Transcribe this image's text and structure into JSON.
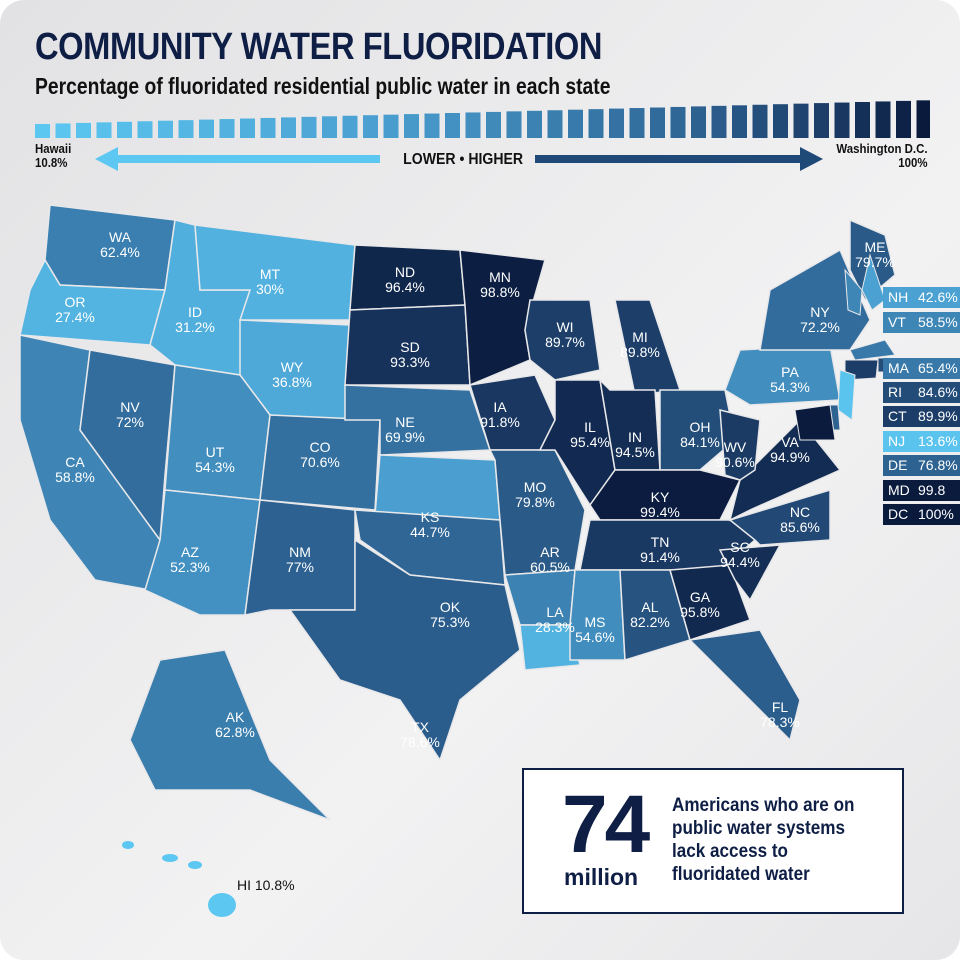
{
  "title": "COMMUNITY WATER FLUORIDATION",
  "subtitle": "Percentage of fluoridated residential public water in each state",
  "scale": {
    "low_name": "Hawaii",
    "low_value": "10.8%",
    "high_name": "Washington D.C.",
    "high_value": "100%",
    "direction_label": "LOWER • HIGHER",
    "color_low": "#5cc8f2",
    "color_high": "#0a1a3d"
  },
  "states": [
    {
      "abbr": "WA",
      "value": "62.4%",
      "v": 62.4
    },
    {
      "abbr": "OR",
      "value": "27.4%",
      "v": 27.4
    },
    {
      "abbr": "CA",
      "value": "58.8%",
      "v": 58.8
    },
    {
      "abbr": "NV",
      "value": "72%",
      "v": 72
    },
    {
      "abbr": "ID",
      "value": "31.2%",
      "v": 31.2
    },
    {
      "abbr": "MT",
      "value": "30%",
      "v": 30
    },
    {
      "abbr": "WY",
      "value": "36.8%",
      "v": 36.8
    },
    {
      "abbr": "UT",
      "value": "54.3%",
      "v": 54.3
    },
    {
      "abbr": "AZ",
      "value": "52.3%",
      "v": 52.3
    },
    {
      "abbr": "CO",
      "value": "70.6%",
      "v": 70.6
    },
    {
      "abbr": "NM",
      "value": "77%",
      "v": 77
    },
    {
      "abbr": "ND",
      "value": "96.4%",
      "v": 96.4
    },
    {
      "abbr": "SD",
      "value": "93.3%",
      "v": 93.3
    },
    {
      "abbr": "NE",
      "value": "69.9%",
      "v": 69.9
    },
    {
      "abbr": "KS",
      "value": "44.7%",
      "v": 44.7
    },
    {
      "abbr": "OK",
      "value": "75.3%",
      "v": 75.3
    },
    {
      "abbr": "TX",
      "value": "78.6%",
      "v": 78.6
    },
    {
      "abbr": "MN",
      "value": "98.8%",
      "v": 98.8
    },
    {
      "abbr": "IA",
      "value": "91.8%",
      "v": 91.8
    },
    {
      "abbr": "MO",
      "value": "79.8%",
      "v": 79.8
    },
    {
      "abbr": "AR",
      "value": "60.5%",
      "v": 60.5
    },
    {
      "abbr": "LA",
      "value": "28.3%",
      "v": 28.3
    },
    {
      "abbr": "WI",
      "value": "89.7%",
      "v": 89.7
    },
    {
      "abbr": "IL",
      "value": "95.4%",
      "v": 95.4
    },
    {
      "abbr": "MI",
      "value": "89.8%",
      "v": 89.8
    },
    {
      "abbr": "IN",
      "value": "94.5%",
      "v": 94.5
    },
    {
      "abbr": "OH",
      "value": "84.1%",
      "v": 84.1
    },
    {
      "abbr": "KY",
      "value": "99.4%",
      "v": 99.4
    },
    {
      "abbr": "TN",
      "value": "91.4%",
      "v": 91.4
    },
    {
      "abbr": "MS",
      "value": "54.6%",
      "v": 54.6
    },
    {
      "abbr": "AL",
      "value": "82.2%",
      "v": 82.2
    },
    {
      "abbr": "GA",
      "value": "95.8%",
      "v": 95.8
    },
    {
      "abbr": "SC",
      "value": "94.4%",
      "v": 94.4
    },
    {
      "abbr": "NC",
      "value": "85.6%",
      "v": 85.6
    },
    {
      "abbr": "VA",
      "value": "94.9%",
      "v": 94.9
    },
    {
      "abbr": "WV",
      "value": "90.6%",
      "v": 90.6
    },
    {
      "abbr": "FL",
      "value": "78.3%",
      "v": 78.3
    },
    {
      "abbr": "PA",
      "value": "54.3%",
      "v": 54.3
    },
    {
      "abbr": "NY",
      "value": "72.2%",
      "v": 72.2
    },
    {
      "abbr": "ME",
      "value": "79.7%",
      "v": 79.7
    },
    {
      "abbr": "AK",
      "value": "62.8%",
      "v": 62.8
    }
  ],
  "side_states": [
    {
      "abbr": "NH",
      "value": "42.6%",
      "v": 42.6
    },
    {
      "abbr": "VT",
      "value": "58.5%",
      "v": 58.5
    },
    {
      "abbr": "MA",
      "value": "65.4%",
      "v": 65.4
    },
    {
      "abbr": "RI",
      "value": "84.6%",
      "v": 84.6
    },
    {
      "abbr": "CT",
      "value": "89.9%",
      "v": 89.9
    },
    {
      "abbr": "NJ",
      "value": "13.6%",
      "v": 13.6
    },
    {
      "abbr": "DE",
      "value": "76.8%",
      "v": 76.8
    },
    {
      "abbr": "MD",
      "value": "99.8",
      "v": 99.8
    },
    {
      "abbr": "DC",
      "value": "100%",
      "v": 100
    }
  ],
  "hawaii": {
    "label": "HI 10.8%",
    "v": 10.8
  },
  "stat": {
    "number": "74",
    "unit": "million",
    "text": "Americans who are on public water systems lack access to fluoridated water"
  }
}
